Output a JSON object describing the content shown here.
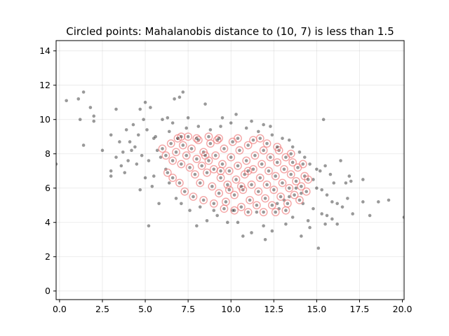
{
  "chart_data": {
    "type": "scatter",
    "title": "Circled points: Mahalanobis distance to (10, 7) is less than 1.5",
    "xlabel": "",
    "ylabel": "",
    "xlim": [
      -0.2,
      20.1
    ],
    "ylim": [
      -0.5,
      14.6
    ],
    "x_ticks": [
      0.0,
      2.5,
      5.0,
      7.5,
      10.0,
      12.5,
      15.0,
      17.5,
      20.0
    ],
    "x_tick_labels": [
      "0.0",
      "2.5",
      "5.0",
      "7.5",
      "10.0",
      "12.5",
      "15.0",
      "17.5",
      "20.0"
    ],
    "y_ticks": [
      0,
      2,
      4,
      6,
      8,
      10,
      12,
      14
    ],
    "y_tick_labels": [
      "0",
      "2",
      "4",
      "6",
      "8",
      "10",
      "12",
      "14"
    ],
    "grid": true,
    "center": [
      10,
      7
    ],
    "threshold": 1.5,
    "colors": {
      "points": "#000000",
      "highlight": "#f08080"
    },
    "series": [
      {
        "marker": "dot",
        "points": [
          [
            0.4,
            11.1
          ],
          [
            1.1,
            11.2
          ],
          [
            1.4,
            11.6
          ],
          [
            1.8,
            10.7
          ],
          [
            2.0,
            10.2
          ],
          [
            2.0,
            9.9
          ],
          [
            1.2,
            10.0
          ],
          [
            1.4,
            8.5
          ],
          [
            -0.2,
            7.4
          ],
          [
            2.5,
            8.2
          ],
          [
            3.0,
            9.1
          ],
          [
            3.3,
            10.6
          ],
          [
            3.0,
            7.0
          ],
          [
            3.0,
            6.7
          ],
          [
            3.3,
            7.8
          ],
          [
            3.5,
            8.7
          ],
          [
            3.7,
            8.1
          ],
          [
            3.6,
            7.3
          ],
          [
            3.8,
            6.9
          ],
          [
            4.0,
            7.6
          ],
          [
            4.1,
            8.7
          ],
          [
            4.3,
            9.7
          ],
          [
            4.2,
            8.2
          ],
          [
            4.5,
            7.4
          ],
          [
            4.6,
            9.1
          ],
          [
            4.7,
            10.6
          ],
          [
            4.9,
            10.0
          ],
          [
            5.0,
            11.0
          ],
          [
            5.1,
            9.4
          ],
          [
            5.3,
            10.7
          ],
          [
            5.5,
            8.9
          ],
          [
            5.2,
            7.6
          ],
          [
            5.0,
            6.6
          ],
          [
            4.7,
            5.9
          ],
          [
            5.4,
            6.1
          ],
          [
            5.2,
            3.8
          ],
          [
            5.8,
            5.1
          ],
          [
            6.0,
            10.0
          ],
          [
            6.3,
            10.1
          ],
          [
            6.7,
            11.2
          ],
          [
            7.0,
            11.3
          ],
          [
            7.2,
            11.6
          ],
          [
            6.6,
            9.8
          ],
          [
            7.5,
            10.1
          ],
          [
            8.5,
            10.9
          ],
          [
            9.5,
            10.1
          ],
          [
            10.0,
            9.8
          ],
          [
            10.3,
            10.3
          ],
          [
            10.9,
            9.5
          ],
          [
            11.6,
            9.3
          ],
          [
            11.9,
            9.7
          ],
          [
            12.3,
            9.6
          ],
          [
            12.4,
            9.1
          ],
          [
            13.0,
            8.9
          ],
          [
            13.4,
            8.8
          ],
          [
            13.6,
            8.4
          ],
          [
            14.0,
            8.1
          ],
          [
            14.3,
            7.8
          ],
          [
            14.6,
            7.4
          ],
          [
            15.0,
            7.1
          ],
          [
            15.4,
            10.0
          ],
          [
            15.2,
            7.0
          ],
          [
            15.5,
            7.3
          ],
          [
            15.8,
            6.8
          ],
          [
            16.0,
            6.3
          ],
          [
            16.4,
            7.6
          ],
          [
            16.7,
            6.3
          ],
          [
            16.9,
            6.7
          ],
          [
            17.0,
            6.4
          ],
          [
            17.7,
            6.5
          ],
          [
            14.8,
            6.5
          ],
          [
            15.0,
            6.0
          ],
          [
            15.3,
            5.9
          ],
          [
            15.6,
            5.6
          ],
          [
            15.9,
            5.2
          ],
          [
            16.2,
            5.1
          ],
          [
            16.5,
            4.9
          ],
          [
            17.1,
            4.5
          ],
          [
            17.7,
            5.2
          ],
          [
            18.1,
            4.4
          ],
          [
            18.6,
            5.2
          ],
          [
            19.2,
            5.3
          ],
          [
            20.1,
            4.3
          ],
          [
            15.1,
            2.5
          ],
          [
            15.3,
            4.5
          ],
          [
            15.5,
            3.9
          ],
          [
            15.9,
            4.2
          ],
          [
            14.1,
            3.2
          ],
          [
            14.5,
            4.1
          ],
          [
            13.2,
            3.9
          ],
          [
            12.4,
            3.5
          ],
          [
            11.9,
            3.8
          ],
          [
            11.2,
            3.4
          ],
          [
            10.7,
            3.2
          ],
          [
            10.4,
            4.0
          ],
          [
            9.8,
            4.0
          ],
          [
            9.2,
            4.4
          ],
          [
            8.6,
            4.1
          ],
          [
            8.0,
            3.8
          ],
          [
            7.6,
            4.7
          ],
          [
            7.1,
            5.1
          ],
          [
            6.8,
            5.4
          ],
          [
            13.6,
            4.3
          ],
          [
            14.2,
            5.1
          ],
          [
            14.8,
            4.8
          ],
          [
            15.6,
            4.4
          ],
          [
            16.2,
            3.9
          ],
          [
            12.8,
            4.8
          ],
          [
            13.1,
            5.3
          ],
          [
            6.4,
            9.3
          ],
          [
            6.9,
            8.9
          ],
          [
            7.4,
            9.5
          ],
          [
            8.1,
            9.6
          ],
          [
            8.8,
            9.4
          ],
          [
            9.4,
            9.6
          ],
          [
            11.2,
            9.9
          ],
          [
            5.6,
            9.0
          ],
          [
            5.7,
            8.2
          ],
          [
            5.9,
            7.8
          ],
          [
            6.2,
            7.1
          ],
          [
            5.5,
            6.7
          ],
          [
            6.4,
            6.3
          ],
          [
            4.4,
            8.4
          ],
          [
            4.8,
            7.9
          ],
          [
            3.9,
            9.4
          ],
          [
            16.8,
            5.4
          ],
          [
            14.6,
            3.7
          ],
          [
            12.0,
            3.0
          ],
          [
            11.5,
            4.6
          ],
          [
            10.1,
            4.7
          ],
          [
            9.0,
            4.7
          ],
          [
            8.2,
            4.9
          ],
          [
            13.8,
            6.0
          ],
          [
            14.1,
            5.7
          ],
          [
            13.4,
            5.5
          ],
          [
            12.7,
            5.1
          ]
        ]
      },
      {
        "marker": "dot-circled",
        "points": [
          [
            6.0,
            8.3
          ],
          [
            6.2,
            7.9
          ],
          [
            6.5,
            8.6
          ],
          [
            6.6,
            7.6
          ],
          [
            6.8,
            8.1
          ],
          [
            6.9,
            8.9
          ],
          [
            7.1,
            7.4
          ],
          [
            7.2,
            8.5
          ],
          [
            7.4,
            7.9
          ],
          [
            7.5,
            9.0
          ],
          [
            7.6,
            7.2
          ],
          [
            7.7,
            8.3
          ],
          [
            7.9,
            6.8
          ],
          [
            8.0,
            7.7
          ],
          [
            8.1,
            8.8
          ],
          [
            8.2,
            6.3
          ],
          [
            8.3,
            7.3
          ],
          [
            8.4,
            8.1
          ],
          [
            8.6,
            6.9
          ],
          [
            8.7,
            7.6
          ],
          [
            8.8,
            8.6
          ],
          [
            8.9,
            6.1
          ],
          [
            9.0,
            7.1
          ],
          [
            9.1,
            7.9
          ],
          [
            9.2,
            8.8
          ],
          [
            9.3,
            5.7
          ],
          [
            9.4,
            6.6
          ],
          [
            9.5,
            7.4
          ],
          [
            9.6,
            8.3
          ],
          [
            9.7,
            5.2
          ],
          [
            9.8,
            6.2
          ],
          [
            9.9,
            7.0
          ],
          [
            10.0,
            7.8
          ],
          [
            10.1,
            8.7
          ],
          [
            10.2,
            5.6
          ],
          [
            10.3,
            6.5
          ],
          [
            10.4,
            7.3
          ],
          [
            10.5,
            8.2
          ],
          [
            10.6,
            4.9
          ],
          [
            10.7,
            5.9
          ],
          [
            10.8,
            6.8
          ],
          [
            10.9,
            7.6
          ],
          [
            11.0,
            8.5
          ],
          [
            11.1,
            5.3
          ],
          [
            11.2,
            6.2
          ],
          [
            11.3,
            7.1
          ],
          [
            11.4,
            7.9
          ],
          [
            11.5,
            5.0
          ],
          [
            11.6,
            5.8
          ],
          [
            11.7,
            6.6
          ],
          [
            11.8,
            7.4
          ],
          [
            11.9,
            8.2
          ],
          [
            12.0,
            5.4
          ],
          [
            12.1,
            6.2
          ],
          [
            12.2,
            7.0
          ],
          [
            12.3,
            7.8
          ],
          [
            12.4,
            5.0
          ],
          [
            12.5,
            5.9
          ],
          [
            12.6,
            6.7
          ],
          [
            12.7,
            7.5
          ],
          [
            12.8,
            8.2
          ],
          [
            12.9,
            5.5
          ],
          [
            13.0,
            6.3
          ],
          [
            13.1,
            7.1
          ],
          [
            13.2,
            7.8
          ],
          [
            13.3,
            5.1
          ],
          [
            13.4,
            6.0
          ],
          [
            13.5,
            6.8
          ],
          [
            13.6,
            7.5
          ],
          [
            13.7,
            5.6
          ],
          [
            13.8,
            6.4
          ],
          [
            13.9,
            7.2
          ],
          [
            14.0,
            5.3
          ],
          [
            14.1,
            6.1
          ],
          [
            14.3,
            6.7
          ],
          [
            14.4,
            5.8
          ],
          [
            14.5,
            6.5
          ],
          [
            7.0,
            6.3
          ],
          [
            7.3,
            5.8
          ],
          [
            7.8,
            5.5
          ],
          [
            8.4,
            5.3
          ],
          [
            9.0,
            5.1
          ],
          [
            9.6,
            4.8
          ],
          [
            10.2,
            4.7
          ],
          [
            6.3,
            6.9
          ],
          [
            6.6,
            6.6
          ],
          [
            7.1,
            9.0
          ],
          [
            8.0,
            8.9
          ],
          [
            8.7,
            9.0
          ],
          [
            9.3,
            8.9
          ],
          [
            11.3,
            8.8
          ],
          [
            12.1,
            8.6
          ],
          [
            12.7,
            8.4
          ],
          [
            13.5,
            8.0
          ],
          [
            14.2,
            7.4
          ],
          [
            11.0,
            4.6
          ],
          [
            11.9,
            4.6
          ],
          [
            12.6,
            4.6
          ],
          [
            13.2,
            4.7
          ],
          [
            9.9,
            5.9
          ],
          [
            10.6,
            6.1
          ],
          [
            11.0,
            7.0
          ],
          [
            9.4,
            7.0
          ],
          [
            8.5,
            7.9
          ],
          [
            10.4,
            8.9
          ],
          [
            11.7,
            8.9
          ]
        ]
      }
    ]
  }
}
